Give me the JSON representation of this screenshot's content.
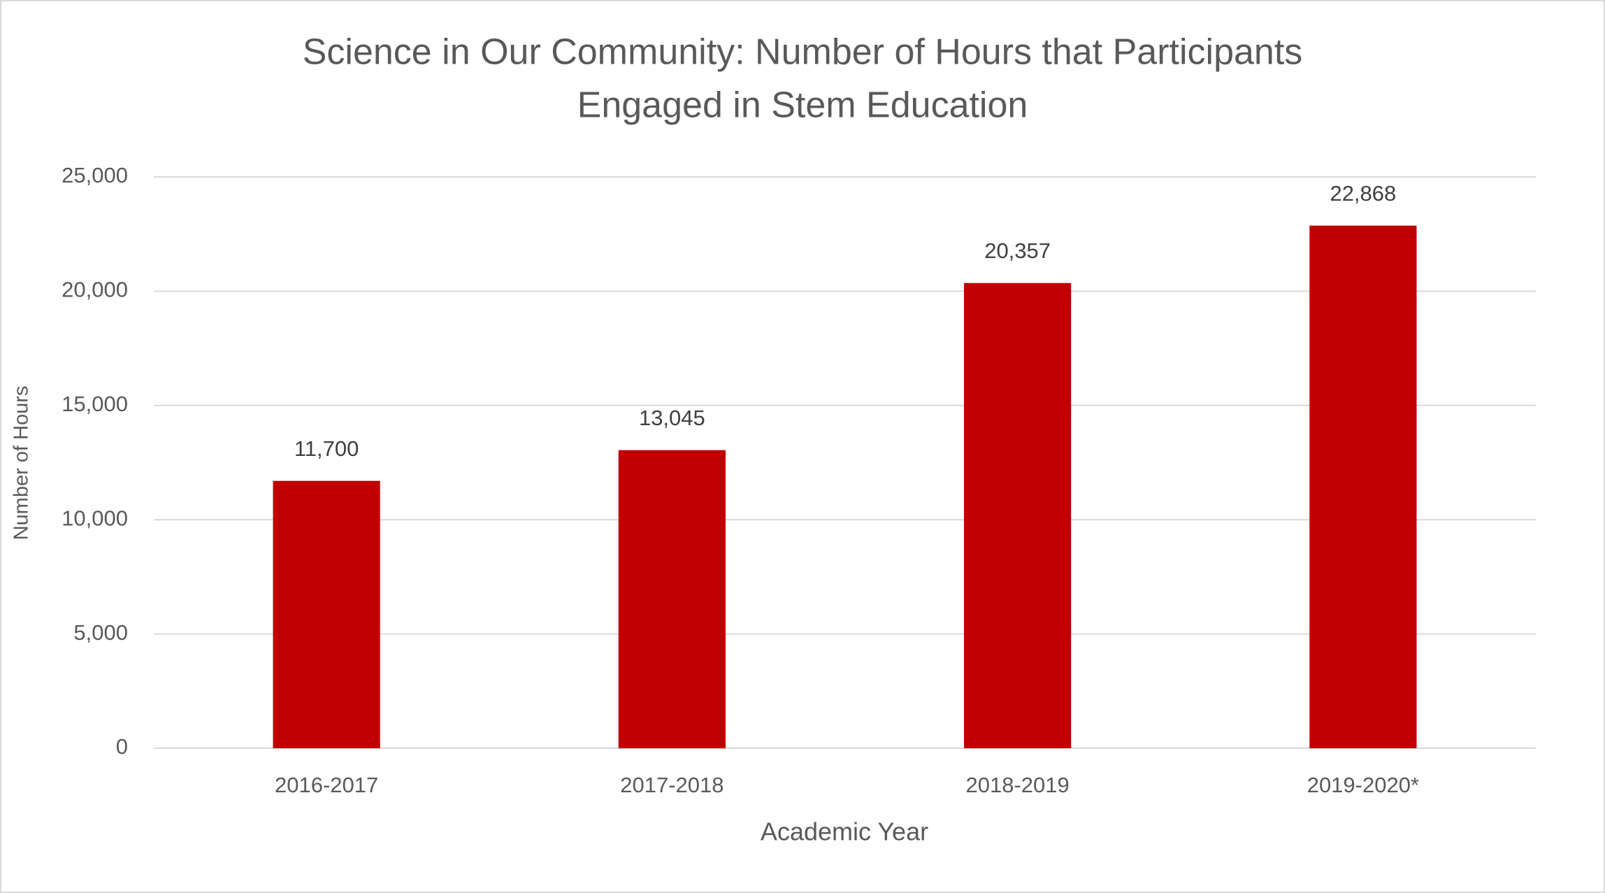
{
  "chart_data": {
    "type": "bar",
    "title": [
      "Science in Our Community: Number of Hours that Participants",
      "Engaged in Stem Education"
    ],
    "x_label": "Academic Year",
    "y_label": "Number of Hours",
    "categories": [
      "2016-2017",
      "2017-2018",
      "2018-2019",
      "2019-2020*"
    ],
    "values": [
      11700,
      13045,
      20357,
      22868
    ],
    "value_labels": [
      "11,700",
      "13,045",
      "20,357",
      "22,868"
    ],
    "color": "#c00000",
    "ylim": [
      0,
      25000
    ],
    "yticks": [
      0,
      {
        "value": 5000,
        "label": "5,000"
      },
      {
        "value": 10000,
        "label": "10,000"
      },
      {
        "value": 15000,
        "label": "15,000"
      },
      {
        "value": 20000,
        "label": "20,000"
      },
      {
        "value": 25000,
        "label": "25,000"
      }
    ],
    "grid": true
  }
}
